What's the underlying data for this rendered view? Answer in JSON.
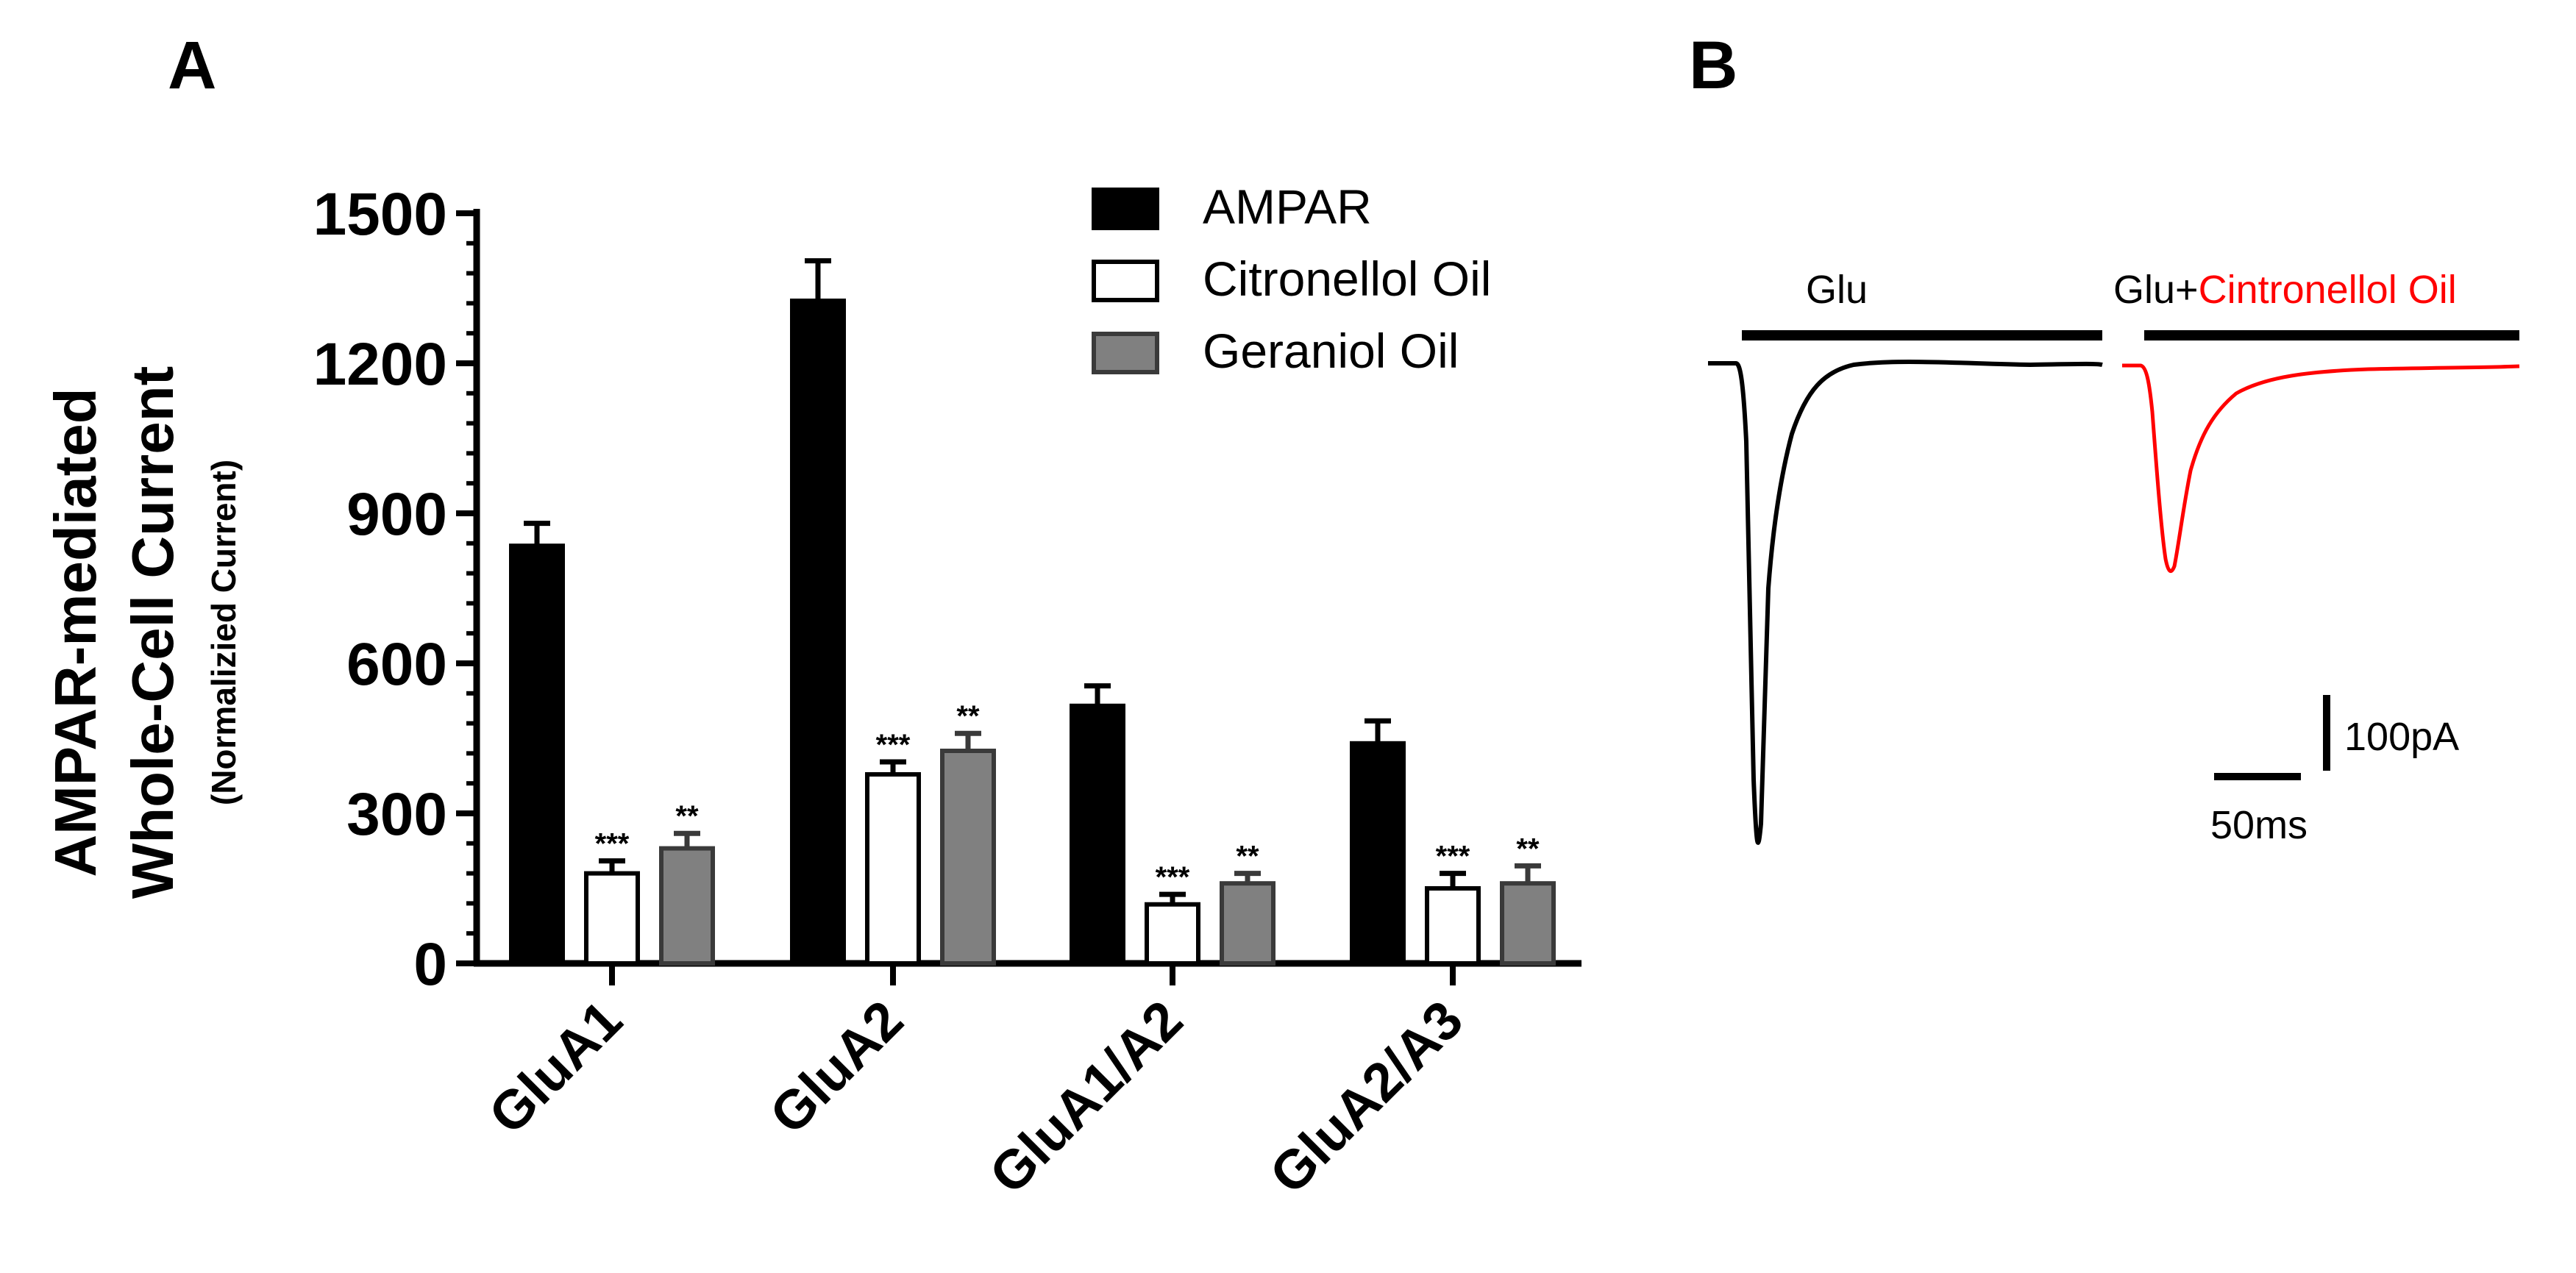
{
  "panels": {
    "a": "A",
    "b": "B"
  },
  "chart_data": {
    "type": "bar",
    "ylabel": "AMPAR-mediated Whole-Cell Current",
    "ylabel_line1": "AMPAR-mediated",
    "ylabel_line2": "Whole-Cell Current",
    "ylabel_sub": "(Normalizied Current)",
    "ylim": [
      0,
      1500
    ],
    "yticks": [
      "0",
      "300",
      "600",
      "900",
      "1200",
      "1500"
    ],
    "categories": [
      "GluA1",
      "GluA2",
      "GluA1/A2",
      "GluA2/A3"
    ],
    "legend_position": "top-right",
    "series": [
      {
        "name": "AMPAR",
        "fill": "#000000",
        "stroke": "#000000",
        "label_color": "#000000",
        "values": [
          835,
          1325,
          515,
          440
        ],
        "errors": [
          45,
          80,
          40,
          45
        ],
        "stars": [
          "",
          "",
          "",
          ""
        ]
      },
      {
        "name": "Citronellol Oil",
        "fill": "#ffffff",
        "stroke": "#000000",
        "label_color": "#ff0000",
        "values": [
          180,
          378,
          118,
          150
        ],
        "errors": [
          25,
          25,
          20,
          30
        ],
        "stars": [
          "***",
          "***",
          "***",
          "***"
        ]
      },
      {
        "name": "Geraniol Oil",
        "fill": "#808080",
        "stroke": "#3a3a3a",
        "label_color": "#000000",
        "values": [
          230,
          425,
          160,
          160
        ],
        "errors": [
          30,
          35,
          20,
          35
        ],
        "stars": [
          "**",
          "**",
          "**",
          "**"
        ]
      }
    ]
  },
  "traces": {
    "control_label": "Glu",
    "treated_label_prefix": "Glu+",
    "treated_label_colored": "Cintronellol Oil",
    "treated_color": "#ff0000",
    "control_color": "#000000"
  },
  "scalebar": {
    "current": "100pA",
    "time": "50ms"
  }
}
